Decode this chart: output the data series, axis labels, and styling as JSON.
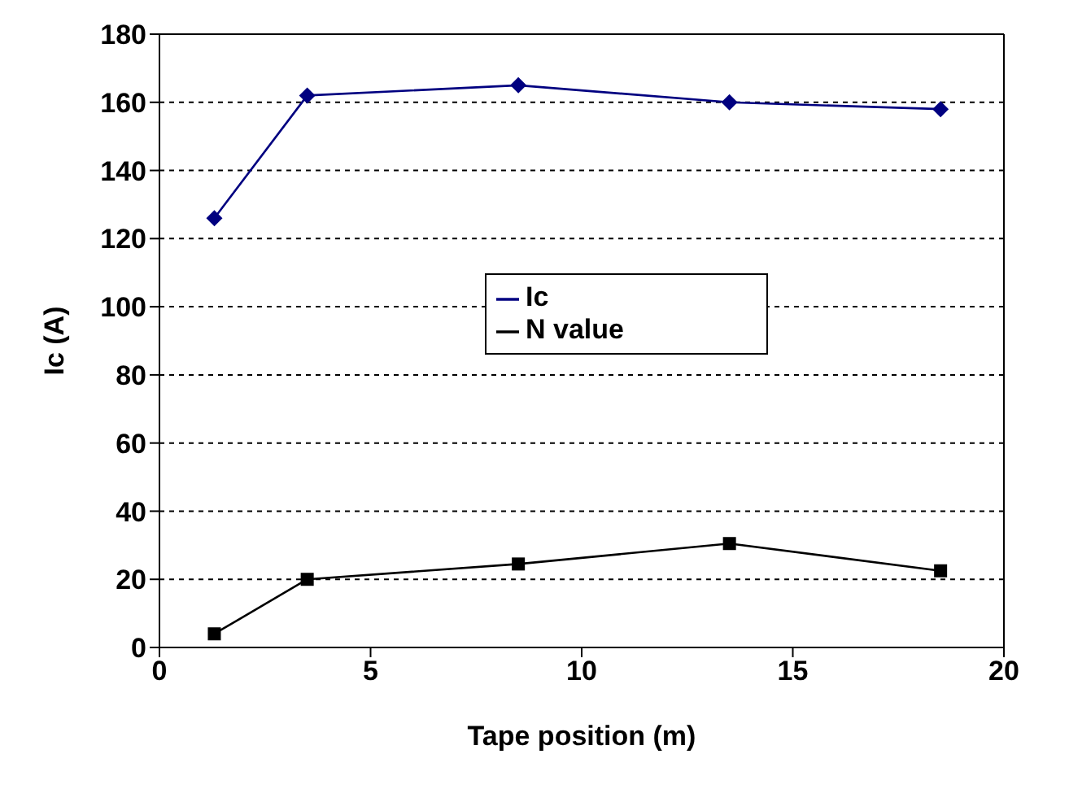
{
  "chart_data": {
    "type": "line",
    "xlabel": "Tape position (m)",
    "ylabel": "Ic (A)",
    "x": [
      1.3,
      3.5,
      8.5,
      13.5,
      18.5
    ],
    "series": [
      {
        "name": "Ic",
        "color": "#000080",
        "values": [
          126,
          162,
          165,
          160,
          158
        ],
        "marker": "diamond"
      },
      {
        "name": "N value",
        "color": "#000000",
        "values": [
          4,
          20,
          24.5,
          30.5,
          22.5
        ],
        "marker": "square"
      }
    ],
    "xlim": [
      0,
      20
    ],
    "xticks": [
      0,
      5,
      10,
      15,
      20
    ],
    "ylim": [
      0,
      180
    ],
    "yticks": [
      0,
      20,
      40,
      60,
      80,
      100,
      120,
      140,
      160,
      180
    ],
    "grid": "y",
    "legend": "center"
  }
}
